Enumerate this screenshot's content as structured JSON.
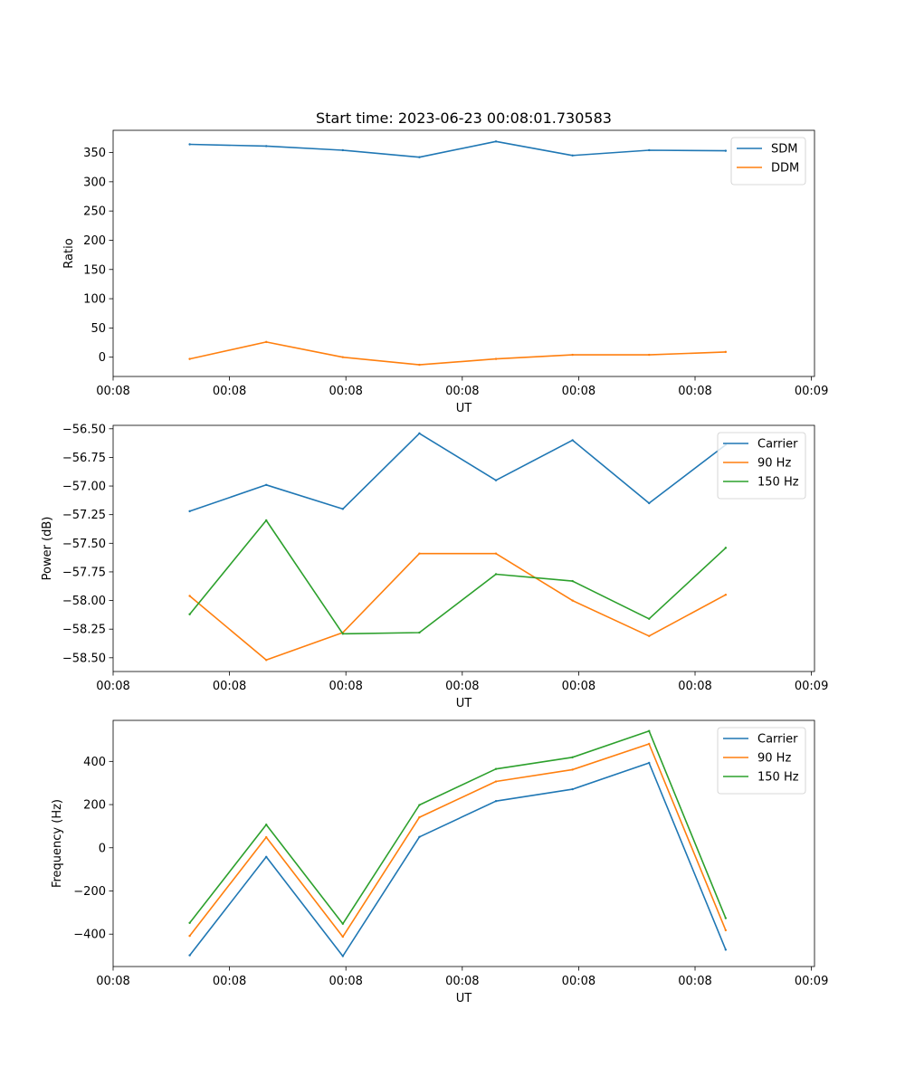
{
  "figure": {
    "title": "Start time: 2023-06-23 00:08:01.730583"
  },
  "chart_data": [
    {
      "type": "line",
      "title": "Start time: 2023-06-23 00:08:01.730583",
      "xlabel": "UT",
      "ylabel": "Ratio",
      "x": [
        1,
        2,
        3,
        4,
        5,
        6,
        7,
        8
      ],
      "xlim": [
        0,
        9.16
      ],
      "x_ticks": [
        {
          "x": 0,
          "label": "00:08"
        },
        {
          "x": 1.52,
          "label": "00:08"
        },
        {
          "x": 3.04,
          "label": "00:08"
        },
        {
          "x": 4.56,
          "label": "00:08"
        },
        {
          "x": 6.08,
          "label": "00:08"
        },
        {
          "x": 7.6,
          "label": "00:08"
        },
        {
          "x": 9.12,
          "label": "00:09"
        }
      ],
      "ylim": [
        -33,
        388
      ],
      "y_ticks": [
        0,
        50,
        100,
        150,
        200,
        250,
        300,
        350
      ],
      "y_tick_labels": [
        "0",
        "50",
        "100",
        "150",
        "200",
        "250",
        "300",
        "350"
      ],
      "legend_position": "top-right",
      "grid": false,
      "series": [
        {
          "name": "SDM",
          "color": "#1f77b4",
          "values": [
            364,
            361,
            354,
            342,
            369,
            345,
            354,
            353
          ]
        },
        {
          "name": "DDM",
          "color": "#ff7f0e",
          "values": [
            -3,
            26,
            0,
            -13,
            -3,
            4,
            4,
            9
          ]
        }
      ]
    },
    {
      "type": "line",
      "title": "",
      "xlabel": "UT",
      "ylabel": "Power (dB)",
      "x": [
        1,
        2,
        3,
        4,
        5,
        6,
        7,
        8
      ],
      "xlim": [
        0,
        9.16
      ],
      "x_ticks": [
        {
          "x": 0,
          "label": "00:08"
        },
        {
          "x": 1.52,
          "label": "00:08"
        },
        {
          "x": 3.04,
          "label": "00:08"
        },
        {
          "x": 4.56,
          "label": "00:08"
        },
        {
          "x": 6.08,
          "label": "00:08"
        },
        {
          "x": 7.6,
          "label": "00:08"
        },
        {
          "x": 9.12,
          "label": "00:09"
        }
      ],
      "ylim": [
        -58.62,
        -56.47
      ],
      "y_ticks": [
        -58.5,
        -58.25,
        -58.0,
        -57.75,
        -57.5,
        -57.25,
        -57.0,
        -56.75,
        -56.5
      ],
      "y_tick_labels": [
        "−58.50",
        "−58.25",
        "−58.00",
        "−57.75",
        "−57.50",
        "−57.25",
        "−57.00",
        "−56.75",
        "−56.50"
      ],
      "legend_position": "top-right",
      "grid": false,
      "series": [
        {
          "name": "Carrier",
          "color": "#1f77b4",
          "values": [
            -57.22,
            -56.99,
            -57.2,
            -56.54,
            -56.95,
            -56.6,
            -57.15,
            -56.64
          ]
        },
        {
          "name": "90 Hz",
          "color": "#ff7f0e",
          "values": [
            -57.96,
            -58.52,
            -58.28,
            -57.59,
            -57.59,
            -58.0,
            -58.31,
            -57.95
          ]
        },
        {
          "name": "150 Hz",
          "color": "#2ca02c",
          "values": [
            -58.12,
            -57.3,
            -58.29,
            -58.28,
            -57.77,
            -57.83,
            -58.16,
            -57.54
          ]
        }
      ]
    },
    {
      "type": "line",
      "title": "",
      "xlabel": "UT",
      "ylabel": "Frequency (Hz)",
      "x": [
        1,
        2,
        3,
        4,
        5,
        6,
        7,
        8
      ],
      "xlim": [
        0,
        9.16
      ],
      "x_ticks": [
        {
          "x": 0,
          "label": "00:08"
        },
        {
          "x": 1.52,
          "label": "00:08"
        },
        {
          "x": 3.04,
          "label": "00:08"
        },
        {
          "x": 4.56,
          "label": "00:08"
        },
        {
          "x": 6.08,
          "label": "00:08"
        },
        {
          "x": 7.6,
          "label": "00:08"
        },
        {
          "x": 9.12,
          "label": "00:09"
        }
      ],
      "ylim": [
        -550,
        590
      ],
      "y_ticks": [
        -400,
        -200,
        0,
        200,
        400
      ],
      "y_tick_labels": [
        "−400",
        "−200",
        "0",
        "200",
        "400"
      ],
      "legend_position": "top-right",
      "grid": false,
      "series": [
        {
          "name": "Carrier",
          "color": "#1f77b4",
          "values": [
            -498,
            -42,
            -502,
            50,
            216,
            271,
            393,
            -472
          ]
        },
        {
          "name": "90 Hz",
          "color": "#ff7f0e",
          "values": [
            -408,
            49,
            -412,
            141,
            307,
            362,
            481,
            -382
          ]
        },
        {
          "name": "150 Hz",
          "color": "#2ca02c",
          "values": [
            -348,
            107,
            -352,
            198,
            365,
            419,
            541,
            -326
          ]
        }
      ]
    }
  ]
}
